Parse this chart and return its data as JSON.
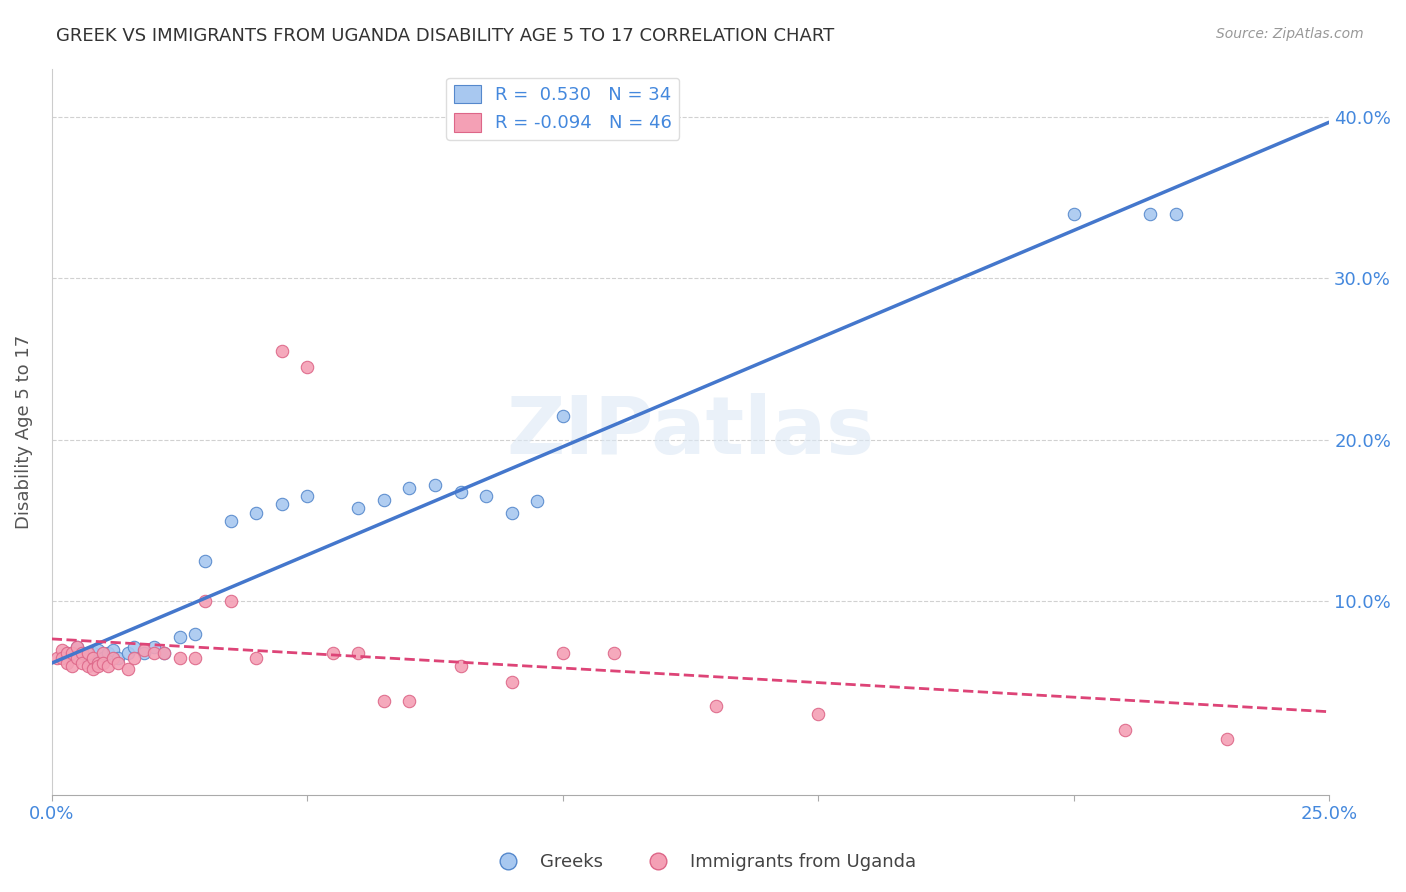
{
  "title": "GREEK VS IMMIGRANTS FROM UGANDA DISABILITY AGE 5 TO 17 CORRELATION CHART",
  "source": "Source: ZipAtlas.com",
  "ylabel": "Disability Age 5 to 17",
  "ytick_labels": [
    "10.0%",
    "20.0%",
    "30.0%",
    "40.0%"
  ],
  "ytick_values": [
    0.1,
    0.2,
    0.3,
    0.4
  ],
  "xlim": [
    0.0,
    0.25
  ],
  "ylim": [
    -0.02,
    0.43
  ],
  "legend_r1": "R =  0.530   N = 34",
  "legend_r2": "R = -0.094   N = 46",
  "legend_label1": "Greeks",
  "legend_label2": "Immigrants from Uganda",
  "watermark": "ZIPatlas",
  "blue_color": "#A8C8F0",
  "pink_color": "#F4A0B5",
  "blue_edge_color": "#5588CC",
  "pink_edge_color": "#DD6688",
  "blue_line_color": "#4477CC",
  "pink_line_color": "#DD4477",
  "axis_label_color": "#4488DD",
  "title_color": "#333333",
  "greek_scatter_x": [
    0.003,
    0.005,
    0.006,
    0.007,
    0.008,
    0.009,
    0.01,
    0.011,
    0.012,
    0.013,
    0.015,
    0.016,
    0.018,
    0.02,
    0.022,
    0.025,
    0.028,
    0.03,
    0.035,
    0.04,
    0.045,
    0.05,
    0.06,
    0.065,
    0.07,
    0.075,
    0.08,
    0.085,
    0.09,
    0.095,
    0.1,
    0.2,
    0.215,
    0.22
  ],
  "greek_scatter_y": [
    0.068,
    0.072,
    0.068,
    0.065,
    0.068,
    0.07,
    0.065,
    0.068,
    0.07,
    0.065,
    0.068,
    0.072,
    0.068,
    0.072,
    0.068,
    0.078,
    0.08,
    0.125,
    0.15,
    0.155,
    0.16,
    0.165,
    0.158,
    0.163,
    0.17,
    0.172,
    0.168,
    0.165,
    0.155,
    0.162,
    0.215,
    0.34,
    0.34,
    0.34
  ],
  "uganda_scatter_x": [
    0.001,
    0.002,
    0.002,
    0.003,
    0.003,
    0.004,
    0.004,
    0.005,
    0.005,
    0.006,
    0.006,
    0.007,
    0.007,
    0.008,
    0.008,
    0.009,
    0.009,
    0.01,
    0.01,
    0.011,
    0.012,
    0.013,
    0.015,
    0.016,
    0.018,
    0.02,
    0.022,
    0.025,
    0.028,
    0.03,
    0.035,
    0.04,
    0.045,
    0.05,
    0.055,
    0.06,
    0.065,
    0.07,
    0.08,
    0.09,
    0.1,
    0.11,
    0.13,
    0.15,
    0.21,
    0.23
  ],
  "uganda_scatter_y": [
    0.065,
    0.07,
    0.065,
    0.068,
    0.062,
    0.068,
    0.06,
    0.072,
    0.065,
    0.068,
    0.062,
    0.068,
    0.06,
    0.065,
    0.058,
    0.062,
    0.06,
    0.068,
    0.062,
    0.06,
    0.065,
    0.062,
    0.058,
    0.065,
    0.07,
    0.068,
    0.068,
    0.065,
    0.065,
    0.1,
    0.1,
    0.065,
    0.255,
    0.245,
    0.068,
    0.068,
    0.038,
    0.038,
    0.06,
    0.05,
    0.068,
    0.068,
    0.035,
    0.03,
    0.02,
    0.015
  ],
  "greek_sizes_val": 80,
  "uganda_sizes_val": 80
}
